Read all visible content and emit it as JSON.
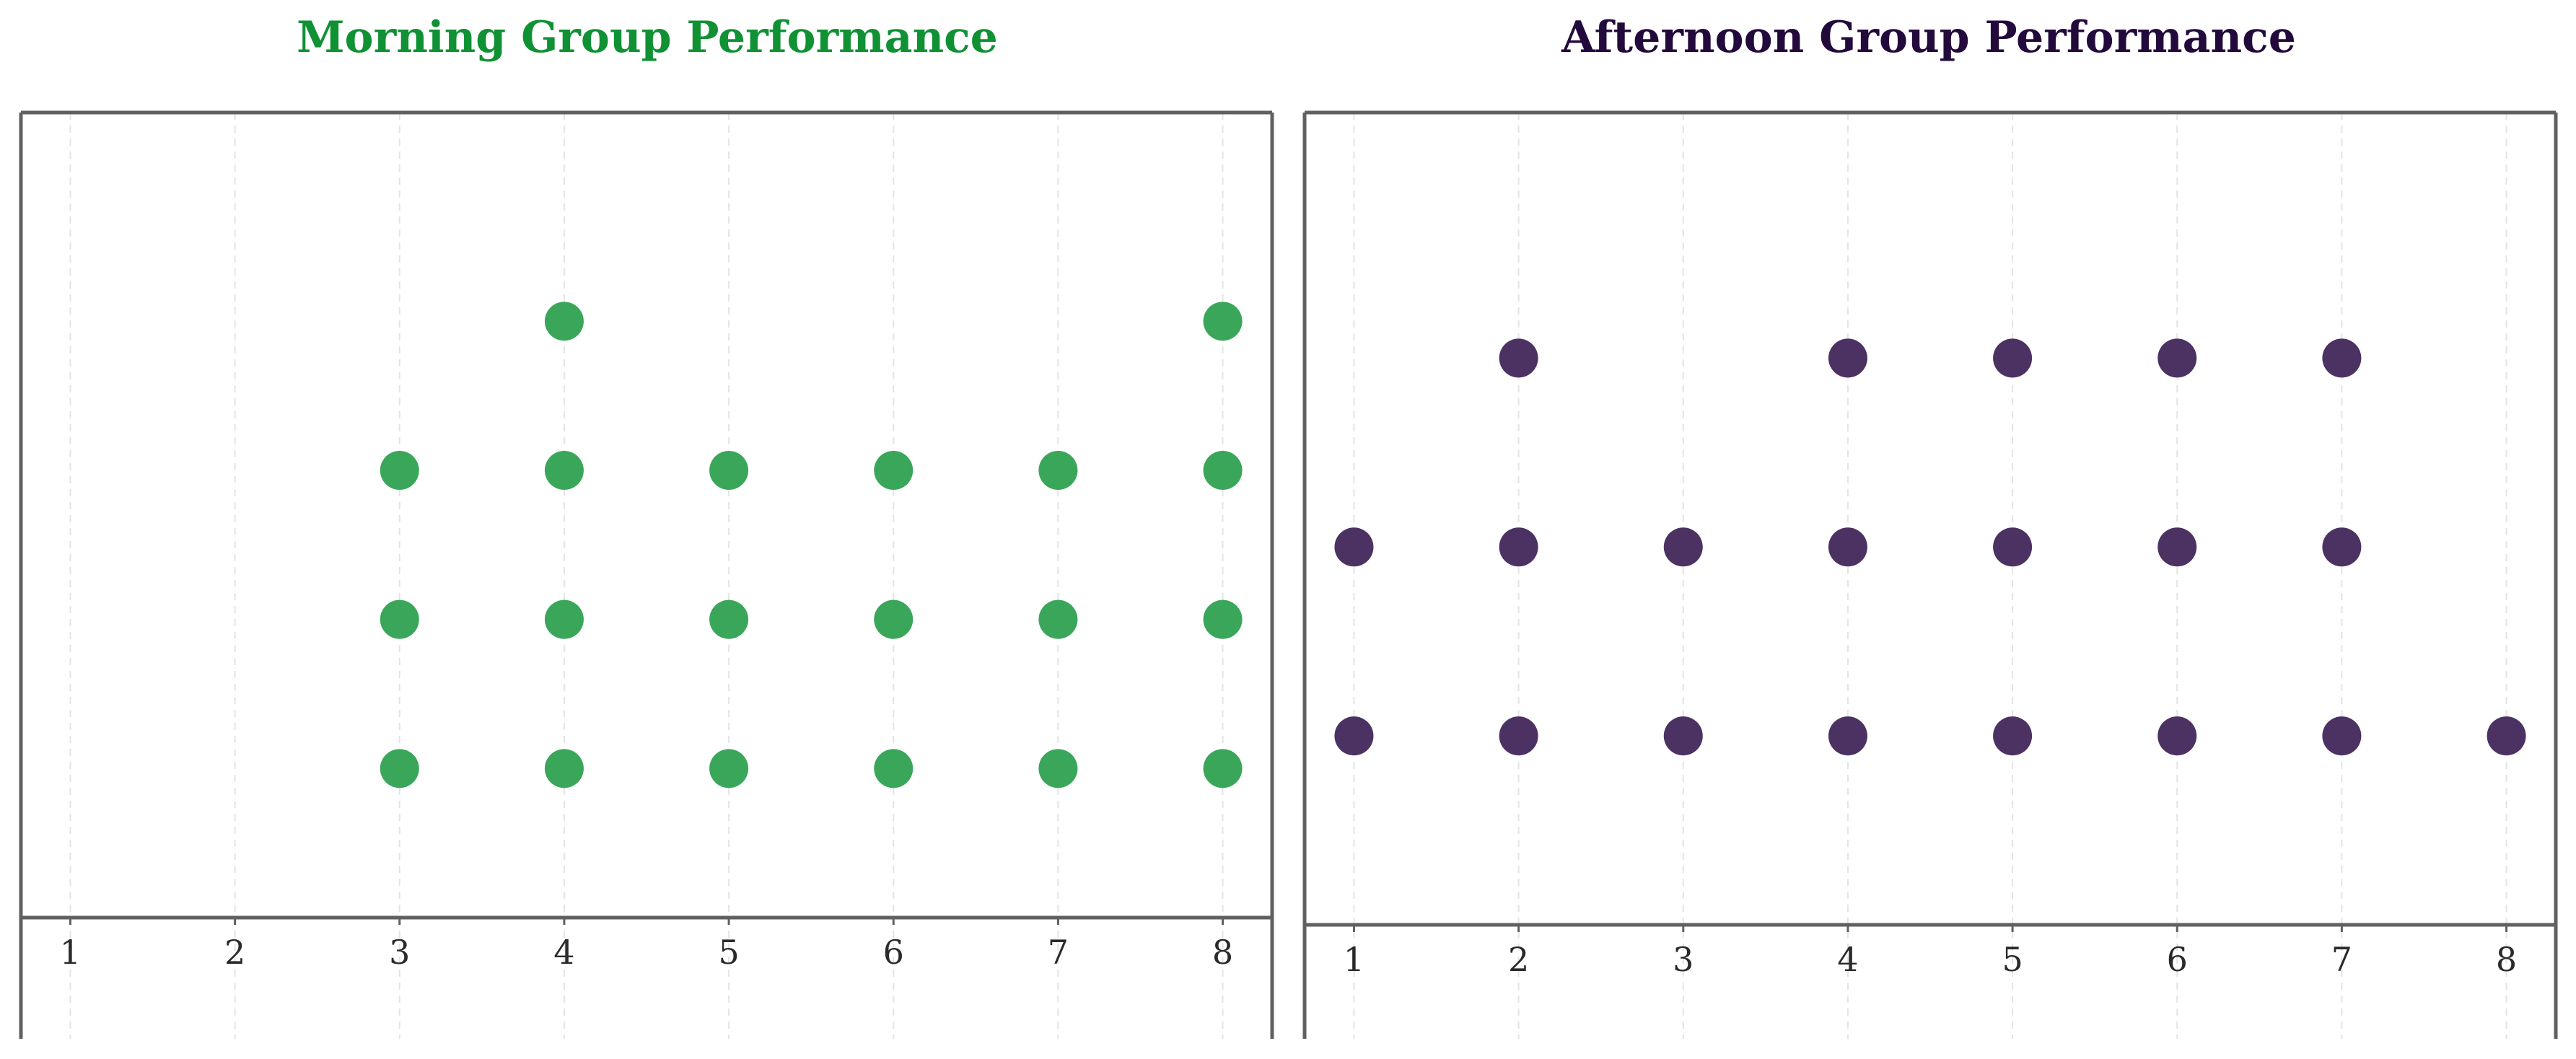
{
  "chart_data": [
    {
      "type": "scatter",
      "title": "Morning Group Performance",
      "title_color": "#0f9134",
      "marker_color": "#3aa65a",
      "xlabel": "",
      "ylabel": "",
      "xlim": [
        0.7,
        8.3
      ],
      "x_ticks": [
        "1",
        "2",
        "3",
        "4",
        "5",
        "6",
        "7",
        "8"
      ],
      "ylim": [
        0,
        5.4
      ],
      "grid": "vertical dashed",
      "points": [
        {
          "x": 3,
          "y": 1
        },
        {
          "x": 3,
          "y": 2
        },
        {
          "x": 3,
          "y": 3
        },
        {
          "x": 4,
          "y": 1
        },
        {
          "x": 4,
          "y": 2
        },
        {
          "x": 4,
          "y": 3
        },
        {
          "x": 4,
          "y": 4
        },
        {
          "x": 5,
          "y": 1
        },
        {
          "x": 5,
          "y": 2
        },
        {
          "x": 5,
          "y": 3
        },
        {
          "x": 6,
          "y": 1
        },
        {
          "x": 6,
          "y": 2
        },
        {
          "x": 6,
          "y": 3
        },
        {
          "x": 7,
          "y": 1
        },
        {
          "x": 7,
          "y": 2
        },
        {
          "x": 7,
          "y": 3
        },
        {
          "x": 8,
          "y": 1
        },
        {
          "x": 8,
          "y": 2
        },
        {
          "x": 8,
          "y": 3
        },
        {
          "x": 8,
          "y": 4
        }
      ]
    },
    {
      "type": "scatter",
      "title": "Afternoon Group Performance",
      "title_color": "#230a3c",
      "marker_color": "#4b3263",
      "xlabel": "",
      "ylabel": "",
      "xlim": [
        0.7,
        8.3
      ],
      "x_ticks": [
        "1",
        "2",
        "3",
        "4",
        "5",
        "6",
        "7",
        "8"
      ],
      "ylim": [
        0,
        4.3
      ],
      "grid": "vertical dashed",
      "points": [
        {
          "x": 1,
          "y": 1
        },
        {
          "x": 1,
          "y": 2
        },
        {
          "x": 2,
          "y": 1
        },
        {
          "x": 2,
          "y": 2
        },
        {
          "x": 2,
          "y": 3
        },
        {
          "x": 3,
          "y": 1
        },
        {
          "x": 3,
          "y": 2
        },
        {
          "x": 4,
          "y": 1
        },
        {
          "x": 4,
          "y": 2
        },
        {
          "x": 4,
          "y": 3
        },
        {
          "x": 5,
          "y": 1
        },
        {
          "x": 5,
          "y": 2
        },
        {
          "x": 5,
          "y": 3
        },
        {
          "x": 6,
          "y": 1
        },
        {
          "x": 6,
          "y": 2
        },
        {
          "x": 6,
          "y": 3
        },
        {
          "x": 7,
          "y": 1
        },
        {
          "x": 7,
          "y": 2
        },
        {
          "x": 7,
          "y": 3
        },
        {
          "x": 8,
          "y": 1
        }
      ]
    }
  ]
}
